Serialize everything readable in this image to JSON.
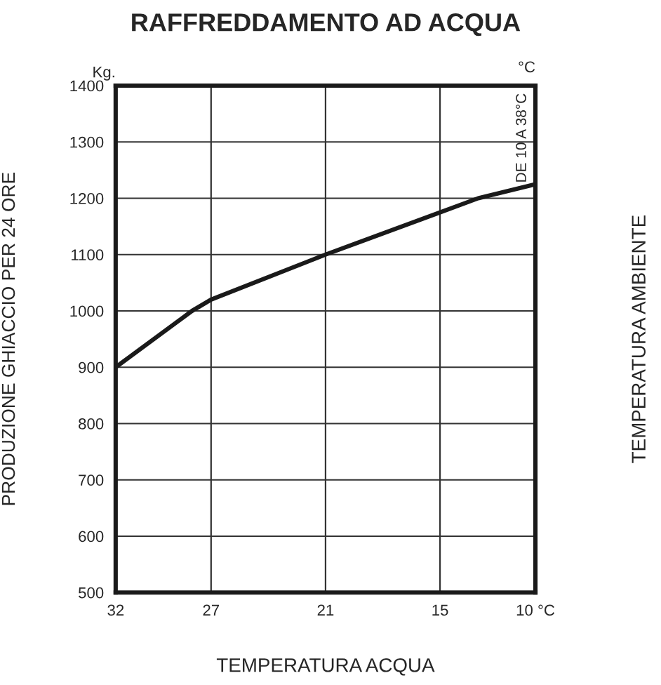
{
  "chart_data": {
    "type": "line",
    "title": "RAFFREDDAMENTO AD ACQUA",
    "xlabel": "TEMPERATURA ACQUA",
    "ylabel": "PRODUZIONE GHIACCIO PER 24 ORE",
    "x": [
      32,
      28,
      27,
      21,
      15,
      13,
      10
    ],
    "series": [
      {
        "color": "#1a1a1a",
        "values": [
          900,
          1000,
          1020,
          1100,
          1175,
          1200,
          1225
        ]
      }
    ],
    "xlim": [
      32,
      10
    ],
    "xticks": [
      32,
      27,
      21,
      15,
      {
        "value": 10,
        "label": "10 °C"
      }
    ],
    "ylim": [
      500,
      1400
    ],
    "yticks": [
      500,
      600,
      700,
      800,
      900,
      1000,
      1100,
      1200,
      1300,
      1400
    ],
    "grid": true,
    "marker": "none",
    "line_style": "solid",
    "annotations": [
      "Kg.",
      "°C",
      "DE 10 A 38°C",
      "TEMPERATURA AMBIENTE"
    ]
  }
}
